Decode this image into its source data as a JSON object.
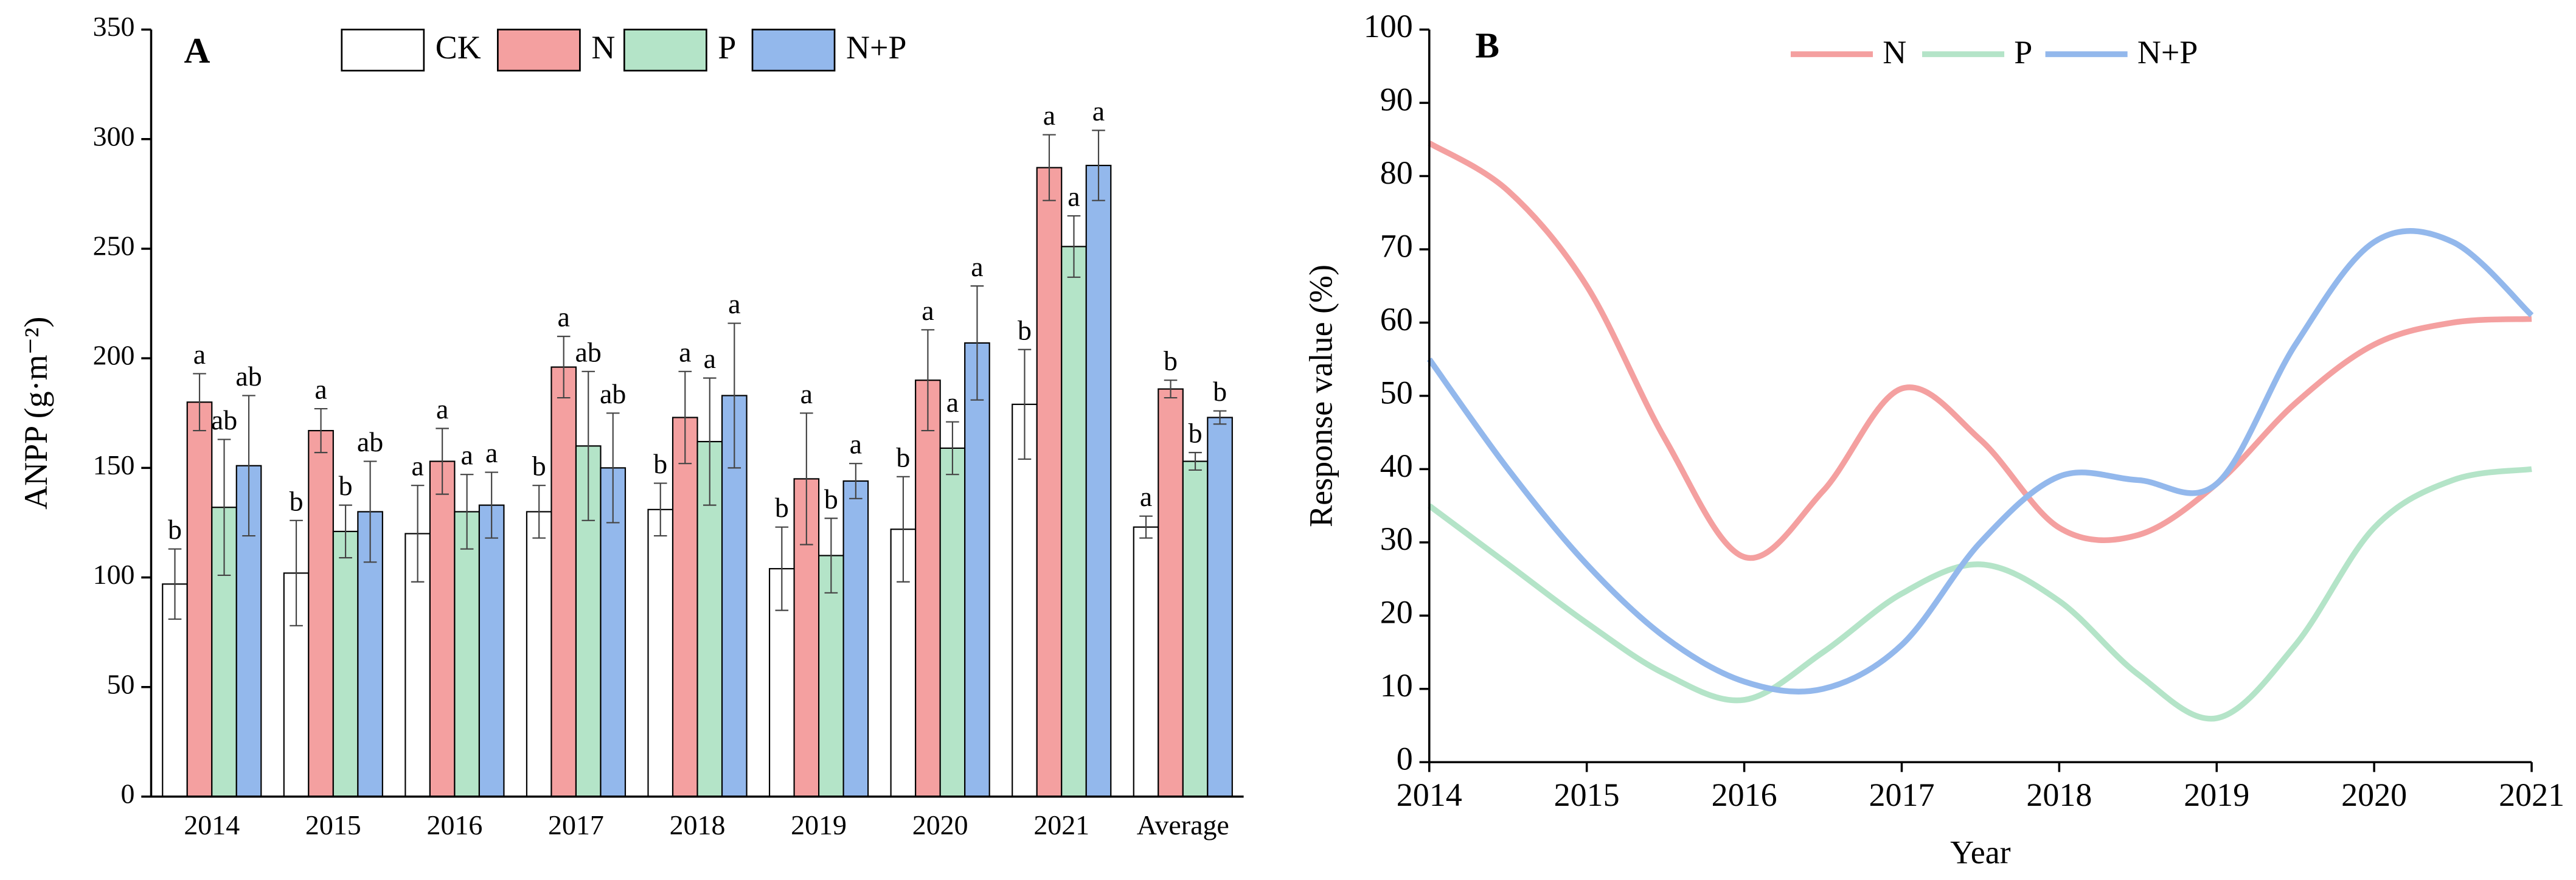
{
  "chart_data": [
    {
      "type": "bar",
      "panel": "A",
      "ylabel": "ANPP (g·m⁻²)",
      "categories": [
        "2014",
        "2015",
        "2016",
        "2017",
        "2018",
        "2019",
        "2020",
        "2021",
        "Average"
      ],
      "ylim": [
        0,
        350
      ],
      "yticks": [
        0,
        50,
        100,
        150,
        200,
        250,
        300,
        350
      ],
      "legend": "top",
      "series": [
        {
          "name": "CK",
          "color": "#ffffff",
          "values": [
            97,
            102,
            120,
            130,
            131,
            104,
            122,
            179,
            123
          ],
          "errors": [
            16,
            24,
            22,
            12,
            12,
            19,
            24,
            25,
            5
          ],
          "letters": [
            "b",
            "b",
            "a",
            "b",
            "b",
            "b",
            "b",
            "b",
            "a"
          ]
        },
        {
          "name": "N",
          "color": "#f4a0a0",
          "values": [
            180,
            167,
            153,
            196,
            173,
            145,
            190,
            287,
            186
          ],
          "errors": [
            13,
            10,
            15,
            14,
            21,
            30,
            23,
            15,
            4
          ],
          "letters": [
            "a",
            "a",
            "a",
            "a",
            "a",
            "a",
            "a",
            "a",
            "b"
          ]
        },
        {
          "name": "P",
          "color": "#b4e4c8",
          "values": [
            132,
            121,
            130,
            160,
            162,
            110,
            159,
            251,
            153
          ],
          "errors": [
            31,
            12,
            17,
            34,
            29,
            17,
            12,
            14,
            4
          ],
          "letters": [
            "ab",
            "b",
            "a",
            "ab",
            "a",
            "b",
            "a",
            "a",
            "b"
          ]
        },
        {
          "name": "N+P",
          "color": "#93b8ec",
          "values": [
            151,
            130,
            133,
            150,
            183,
            144,
            207,
            288,
            173
          ],
          "errors": [
            32,
            23,
            15,
            25,
            33,
            8,
            26,
            16,
            3
          ],
          "letters": [
            "ab",
            "ab",
            "a",
            "ab",
            "a",
            "a",
            "a",
            "a",
            "b"
          ]
        }
      ]
    },
    {
      "type": "line",
      "panel": "B",
      "xlabel": "Year",
      "ylabel": "Response value (%)",
      "x": [
        2014,
        2014.5,
        2015,
        2015.5,
        2016,
        2016.5,
        2017,
        2017.5,
        2018,
        2018.5,
        2019,
        2019.5,
        2020,
        2020.5,
        2021
      ],
      "xlim": [
        2014,
        2021
      ],
      "xticks": [
        2014,
        2015,
        2016,
        2017,
        2018,
        2019,
        2020,
        2021
      ],
      "ylim": [
        0,
        100
      ],
      "yticks": [
        0,
        10,
        20,
        30,
        40,
        50,
        60,
        70,
        80,
        90,
        100
      ],
      "legend": "top",
      "series": [
        {
          "name": "N",
          "color": "#f4a0a0",
          "values": [
            84.5,
            78,
            65,
            44,
            28,
            37,
            51,
            44,
            32,
            31,
            38,
            49,
            57,
            60,
            60.5
          ]
        },
        {
          "name": "P",
          "color": "#b4e4c8",
          "values": [
            35,
            27,
            19,
            12,
            8.5,
            15,
            23,
            27,
            22,
            12,
            6,
            16,
            32,
            38.5,
            40
          ]
        },
        {
          "name": "N+P",
          "color": "#93b8ec",
          "values": [
            55,
            40,
            27,
            17,
            11,
            10,
            16,
            30,
            39,
            38.5,
            38,
            57,
            71,
            71,
            61
          ]
        }
      ]
    }
  ]
}
